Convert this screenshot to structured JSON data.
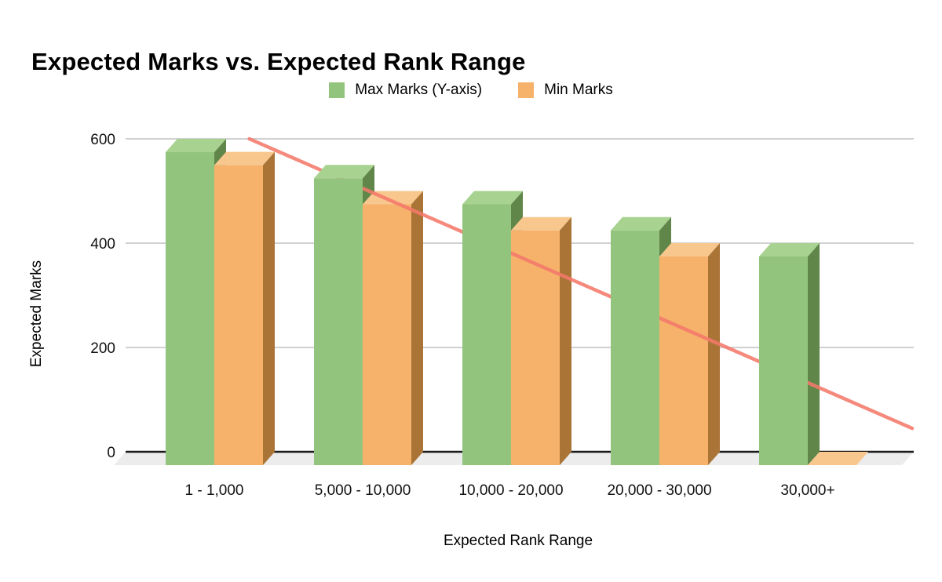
{
  "page": {
    "background": "#ffffff"
  },
  "chart_data": {
    "type": "bar",
    "variant": "3d-grouped-columns-with-trendline",
    "title": "Expected Marks vs. Expected Rank Range",
    "xlabel": "Expected Rank Range",
    "ylabel": "Expected Marks",
    "categories": [
      "1 - 1,000",
      "5,000 - 10,000",
      "10,000 - 20,000",
      "20,000 - 30,000",
      "30,000+"
    ],
    "series": [
      {
        "name": "Max Marks (Y-axis)",
        "color": "#93c47d",
        "values": [
          600,
          550,
          500,
          450,
          400
        ]
      },
      {
        "name": "Min Marks",
        "color": "#f6b26b",
        "values": [
          575,
          500,
          450,
          400,
          0
        ]
      }
    ],
    "trendline": {
      "color": "#f4796b",
      "start_value": 600,
      "end_value": 45,
      "x_start_frac": 0.157,
      "x_end_frac": 0.998
    },
    "yticks": [
      0,
      200,
      400,
      600
    ],
    "ylim": [
      0,
      600
    ],
    "legend_position": "top-center",
    "grid": true,
    "grid_color": "#d0d0d0",
    "axis_line_color": "#1a1a1a",
    "floor_color": "#ececec",
    "text_color": "#111111"
  }
}
